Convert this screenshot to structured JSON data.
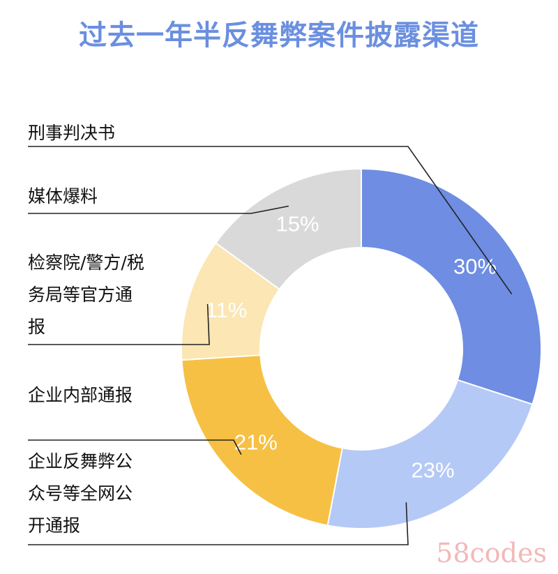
{
  "title": "过去一年半反舞弊案件披露渠道",
  "chart_data": {
    "type": "pie",
    "subtype": "donut",
    "title": "过去一年半反舞弊案件披露渠道",
    "unit": "%",
    "slices": [
      {
        "label": "刑事判决书",
        "value": 30,
        "display": "30%",
        "color": "#6e8de3"
      },
      {
        "label": "企业反舞弊公众号等全网公开通报",
        "value": 23,
        "display": "23%",
        "color": "#b5c9f6"
      },
      {
        "label": "企业内部通报",
        "value": 21,
        "display": "21%",
        "color": "#f6c044"
      },
      {
        "label": "检察院/警方/税务局等官方通报",
        "value": 11,
        "display": "11%",
        "color": "#fbe6b4"
      },
      {
        "label": "媒体爆料",
        "value": 15,
        "display": "15%",
        "color": "#d9d9d9"
      }
    ]
  },
  "legend": {
    "xingshi": "刑事判决书",
    "meiti": "媒体爆料",
    "jianchayuan": "检察院/警方/税\n务局等官方通\n报",
    "neibu": "企业内部通报",
    "gongzhonghao": "企业反舞弊公\n众号等全网公\n开通报"
  },
  "watermark": "58codes"
}
